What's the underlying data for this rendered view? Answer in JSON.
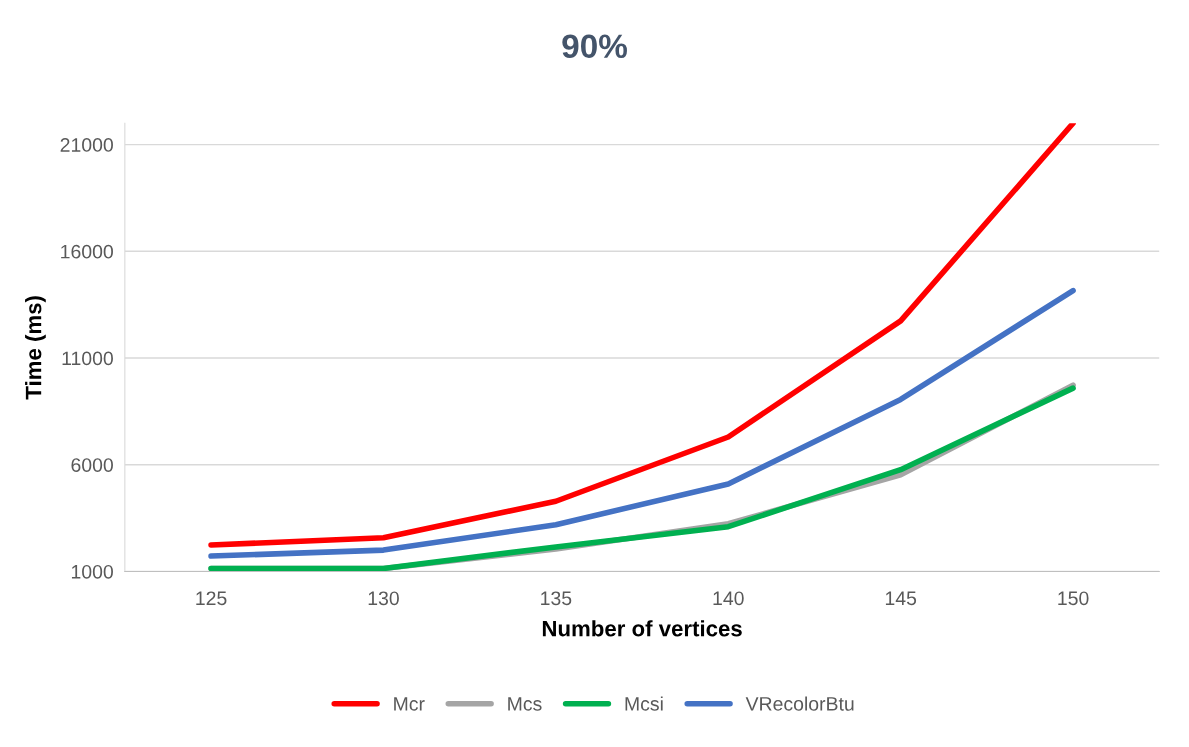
{
  "chart_data": {
    "type": "line",
    "title": "90%",
    "xlabel": "Number of vertices",
    "ylabel": "Time (ms)",
    "categories": [
      "125",
      "130",
      "135",
      "140",
      "145",
      "150"
    ],
    "series": [
      {
        "name": "Mcr",
        "color": "#ff0000",
        "values": [
          2240,
          2580,
          4290,
          7300,
          12740,
          22000
        ]
      },
      {
        "name": "Mcs",
        "color": "#a5a5a5",
        "values": [
          1140,
          1140,
          2050,
          3240,
          5530,
          9730
        ]
      },
      {
        "name": "Mcsi",
        "color": "#00b050",
        "values": [
          1140,
          1140,
          2150,
          3100,
          5770,
          9590
        ]
      },
      {
        "name": "VRecolorBtu",
        "color": "#4472c4",
        "values": [
          1720,
          2000,
          3190,
          5100,
          9060,
          14160
        ]
      }
    ],
    "ylim": [
      1000,
      22000
    ],
    "yticks": [
      1000,
      6000,
      11000,
      16000,
      21000
    ],
    "grid": "y",
    "legend": "bottom",
    "marker": "none",
    "line_style": "solid"
  }
}
